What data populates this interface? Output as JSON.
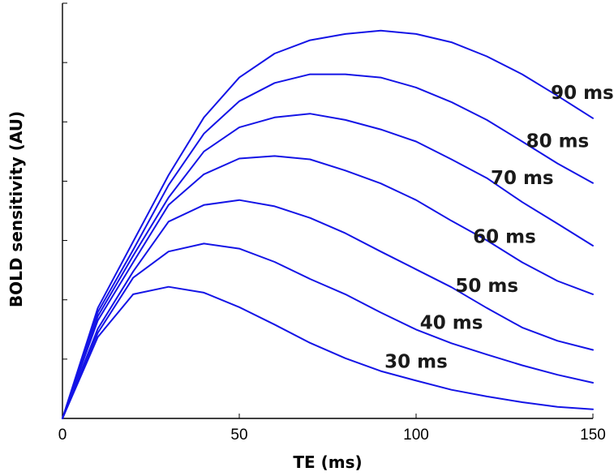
{
  "chart_data": {
    "type": "line",
    "title": "",
    "xlabel": "TE (ms)",
    "ylabel": "BOLD sensitivity (AU)",
    "xlim": [
      0,
      150
    ],
    "ylim": [
      0,
      1.0
    ],
    "x_ticks": [
      "0",
      "50",
      "100",
      "150"
    ],
    "x_tick_values": [
      0,
      50,
      100,
      150
    ],
    "y_tick_count": 7,
    "grid": false,
    "line_color": "#1414e6",
    "x": [
      0,
      10,
      20,
      30,
      40,
      50,
      60,
      70,
      80,
      90,
      100,
      110,
      120,
      130,
      140,
      150
    ],
    "series": [
      {
        "name": "30 ms",
        "values": [
          0,
          0.196,
          0.299,
          0.317,
          0.303,
          0.268,
          0.226,
          0.182,
          0.145,
          0.114,
          0.091,
          0.069,
          0.053,
          0.039,
          0.028,
          0.022
        ]
      },
      {
        "name": "40 ms",
        "values": [
          0,
          0.206,
          0.339,
          0.402,
          0.421,
          0.409,
          0.377,
          0.336,
          0.299,
          0.255,
          0.214,
          0.181,
          0.154,
          0.128,
          0.105,
          0.086
        ]
      },
      {
        "name": "50 ms",
        "values": [
          0,
          0.216,
          0.354,
          0.474,
          0.514,
          0.526,
          0.511,
          0.483,
          0.446,
          0.402,
          0.359,
          0.316,
          0.266,
          0.219,
          0.187,
          0.165
        ]
      },
      {
        "name": "60 ms",
        "values": [
          0,
          0.236,
          0.376,
          0.514,
          0.588,
          0.626,
          0.632,
          0.624,
          0.597,
          0.566,
          0.526,
          0.476,
          0.429,
          0.376,
          0.331,
          0.299
        ]
      },
      {
        "name": "70 ms",
        "values": [
          0,
          0.246,
          0.392,
          0.532,
          0.643,
          0.701,
          0.725,
          0.734,
          0.719,
          0.696,
          0.667,
          0.624,
          0.579,
          0.521,
          0.469,
          0.416
        ]
      },
      {
        "name": "80 ms",
        "values": [
          0,
          0.256,
          0.406,
          0.562,
          0.686,
          0.764,
          0.808,
          0.829,
          0.829,
          0.821,
          0.797,
          0.762,
          0.719,
          0.667,
          0.614,
          0.567
        ]
      },
      {
        "name": "90 ms",
        "values": [
          0,
          0.266,
          0.426,
          0.586,
          0.725,
          0.821,
          0.879,
          0.911,
          0.926,
          0.934,
          0.926,
          0.906,
          0.872,
          0.829,
          0.777,
          0.723
        ]
      }
    ]
  }
}
